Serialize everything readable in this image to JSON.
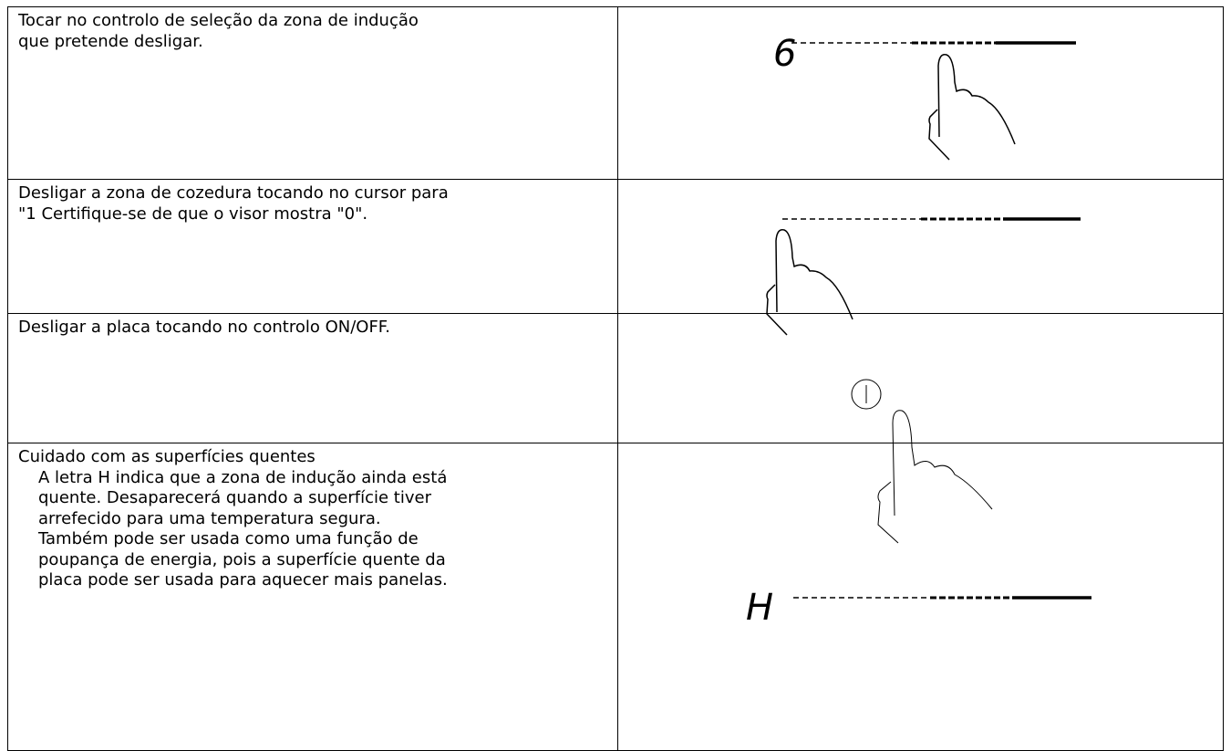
{
  "table": {
    "rows": [
      {
        "text": [
          "Tocar no controlo de seleção da zona de indução",
          "que pretende desligar."
        ],
        "display": "6"
      },
      {
        "text": [
          "Desligar a zona de cozedura tocando no cursor para",
          "\"1 Certifique-se de que o visor mostra \"0\"."
        ]
      },
      {
        "text": [
          "Desligar a placa tocando no controlo ON/OFF."
        ]
      },
      {
        "heading": "Cuidado com as superfícies quentes",
        "text": [
          "A letra H indica que a zona de indução ainda está",
          "quente. Desaparecerá quando a superfície tiver",
          "arrefecido para uma temperatura segura.",
          "Também pode ser usada como uma função de",
          "poupança de energia, pois a superfície quente da",
          "placa pode ser usada para aquecer mais panelas."
        ],
        "display": "H"
      }
    ]
  }
}
